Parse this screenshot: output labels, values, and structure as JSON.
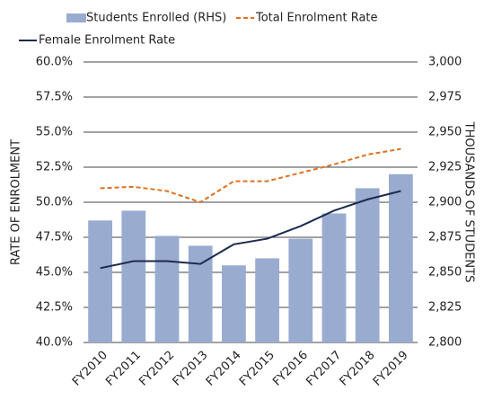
{
  "chart_data": {
    "type": "bar-line",
    "categories": [
      "FY2010",
      "FY2011",
      "FY2012",
      "FY2013",
      "FY2014",
      "FY2015",
      "FY2016",
      "FY2017",
      "FY2018",
      "FY2019"
    ],
    "series": [
      {
        "name": "Students Enrolled (RHS)",
        "type": "bar",
        "axis": "y2",
        "color": "#9aabd0",
        "values": [
          2887,
          2894,
          2876,
          2869,
          2855,
          2860,
          2874,
          2892,
          2910,
          2920
        ]
      },
      {
        "name": "Total Enrolment Rate",
        "type": "line",
        "dashed": true,
        "color": "#e07020",
        "values": [
          51.0,
          51.1,
          50.8,
          50.0,
          51.5,
          51.5,
          52.1,
          52.7,
          53.4,
          53.8
        ]
      },
      {
        "name": "Female Enrolment Rate",
        "type": "line",
        "color": "#1c2b4d",
        "values": [
          45.3,
          45.8,
          45.8,
          45.6,
          47.0,
          47.4,
          48.3,
          49.4,
          50.2,
          50.8
        ]
      }
    ],
    "ylabel": "RATE OF ENROLMENT",
    "y2label": "THOUSANDS OF STUDENTS",
    "ylim": [
      40,
      60
    ],
    "yticks": [
      {
        "value": 40,
        "label": "40.0%"
      },
      {
        "value": 42.5,
        "label": "42.5%"
      },
      {
        "value": 45,
        "label": "45.0%"
      },
      {
        "value": 47.5,
        "label": "47.5%"
      },
      {
        "value": 50,
        "label": "50.0%"
      },
      {
        "value": 52.5,
        "label": "52.5%"
      },
      {
        "value": 55,
        "label": "55.0%"
      },
      {
        "value": 57.5,
        "label": "57.5%"
      },
      {
        "value": 60,
        "label": "60.0%"
      }
    ],
    "y2lim": [
      2800,
      3000
    ],
    "y2ticks": [
      {
        "value": 2800,
        "label": "2,800"
      },
      {
        "value": 2825,
        "label": "2,825"
      },
      {
        "value": 2850,
        "label": "2,850"
      },
      {
        "value": 2875,
        "label": "2,875"
      },
      {
        "value": 2900,
        "label": "2,900"
      },
      {
        "value": 2925,
        "label": "2,925"
      },
      {
        "value": 2950,
        "label": "2,950"
      },
      {
        "value": 2975,
        "label": "2,975"
      },
      {
        "value": 3000,
        "label": "3,000"
      }
    ],
    "grid": true,
    "legend": "top"
  }
}
